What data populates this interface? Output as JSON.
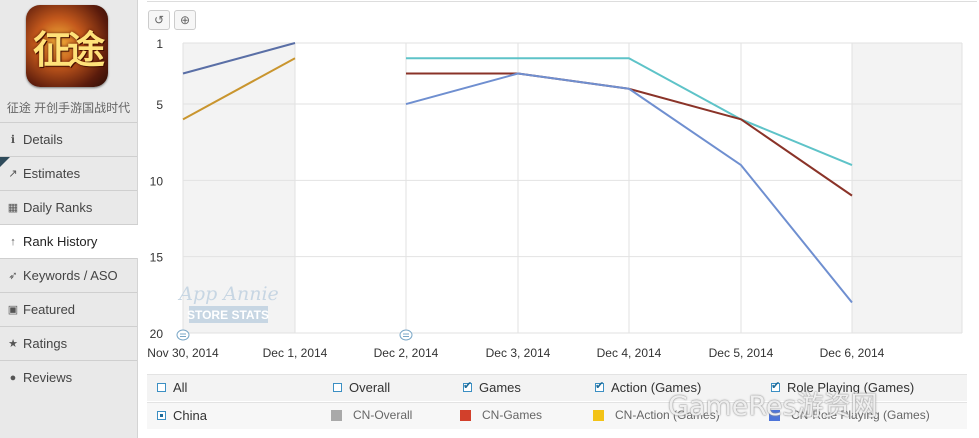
{
  "app": {
    "name": "征途 开创手游国战时代",
    "icon_text": "征途"
  },
  "nav": [
    {
      "label": "Details",
      "icon": "info-icon",
      "glyph": "ℹ"
    },
    {
      "label": "Estimates",
      "icon": "trend-icon",
      "glyph": "↗"
    },
    {
      "label": "Daily Ranks",
      "icon": "calendar-icon",
      "glyph": "▦"
    },
    {
      "label": "Rank History",
      "icon": "arrow-up-icon",
      "glyph": "↑"
    },
    {
      "label": "Keywords / ASO",
      "icon": "target-icon",
      "glyph": "➶"
    },
    {
      "label": "Featured",
      "icon": "bookmark-icon",
      "glyph": "▣"
    },
    {
      "label": "Ratings",
      "icon": "star-icon",
      "glyph": "★"
    },
    {
      "label": "Reviews",
      "icon": "comment-icon",
      "glyph": "●"
    }
  ],
  "active_nav": "Rank History",
  "toolbar": {
    "reset_icon": "reset-zoom-icon",
    "zoom_icon": "zoom-in-icon"
  },
  "chart_data": {
    "type": "line",
    "x": [
      "Nov 30, 2014",
      "Dec 1, 2014",
      "Dec 2, 2014",
      "Dec 3, 2014",
      "Dec 4, 2014",
      "Dec 5, 2014",
      "Dec 6, 2014"
    ],
    "ylim": [
      1,
      20
    ],
    "y_reversed": true,
    "y_ticks": [
      1,
      5,
      10,
      15,
      20
    ],
    "grid": true,
    "watermark": [
      "App Annie",
      "STORE STATS"
    ],
    "series": [
      {
        "name": "CN-Overall",
        "color": "#5a6fa6",
        "values": [
          3,
          1,
          null,
          null,
          null,
          null,
          null
        ]
      },
      {
        "name": "CN-Action (Games)",
        "color": "#c9952e",
        "values": [
          6,
          2,
          null,
          null,
          null,
          null,
          null
        ]
      },
      {
        "name": "CN-Overall",
        "color": "#5ec3c8",
        "values": [
          null,
          null,
          2,
          2,
          2,
          6,
          9
        ]
      },
      {
        "name": "CN-Games",
        "color": "#8a3328",
        "values": [
          null,
          null,
          3,
          3,
          4,
          6,
          11
        ]
      },
      {
        "name": "CN-Role Playing (Games)",
        "color": "#6f8fd0",
        "values": [
          null,
          null,
          5,
          3,
          4,
          9,
          18
        ]
      }
    ]
  },
  "legend": {
    "row1": [
      {
        "label": "All",
        "checked": false
      },
      {
        "label": "Overall",
        "checked": false
      },
      {
        "label": "Games",
        "checked": true
      },
      {
        "label": "Action (Games)",
        "checked": true
      },
      {
        "label": "Role Playing (Games)",
        "checked": true
      }
    ],
    "row2": [
      {
        "label": "China",
        "kind": "radio"
      },
      {
        "label": "CN-Overall",
        "color": "#a9a9a9"
      },
      {
        "label": "CN-Games",
        "color": "#d2402b"
      },
      {
        "label": "CN-Action (Games)",
        "color": "#f3c316"
      },
      {
        "label": "CN-Role Playing (Games)",
        "color": "#4d74d9"
      }
    ]
  },
  "watermark_text": "GameRes游资网"
}
